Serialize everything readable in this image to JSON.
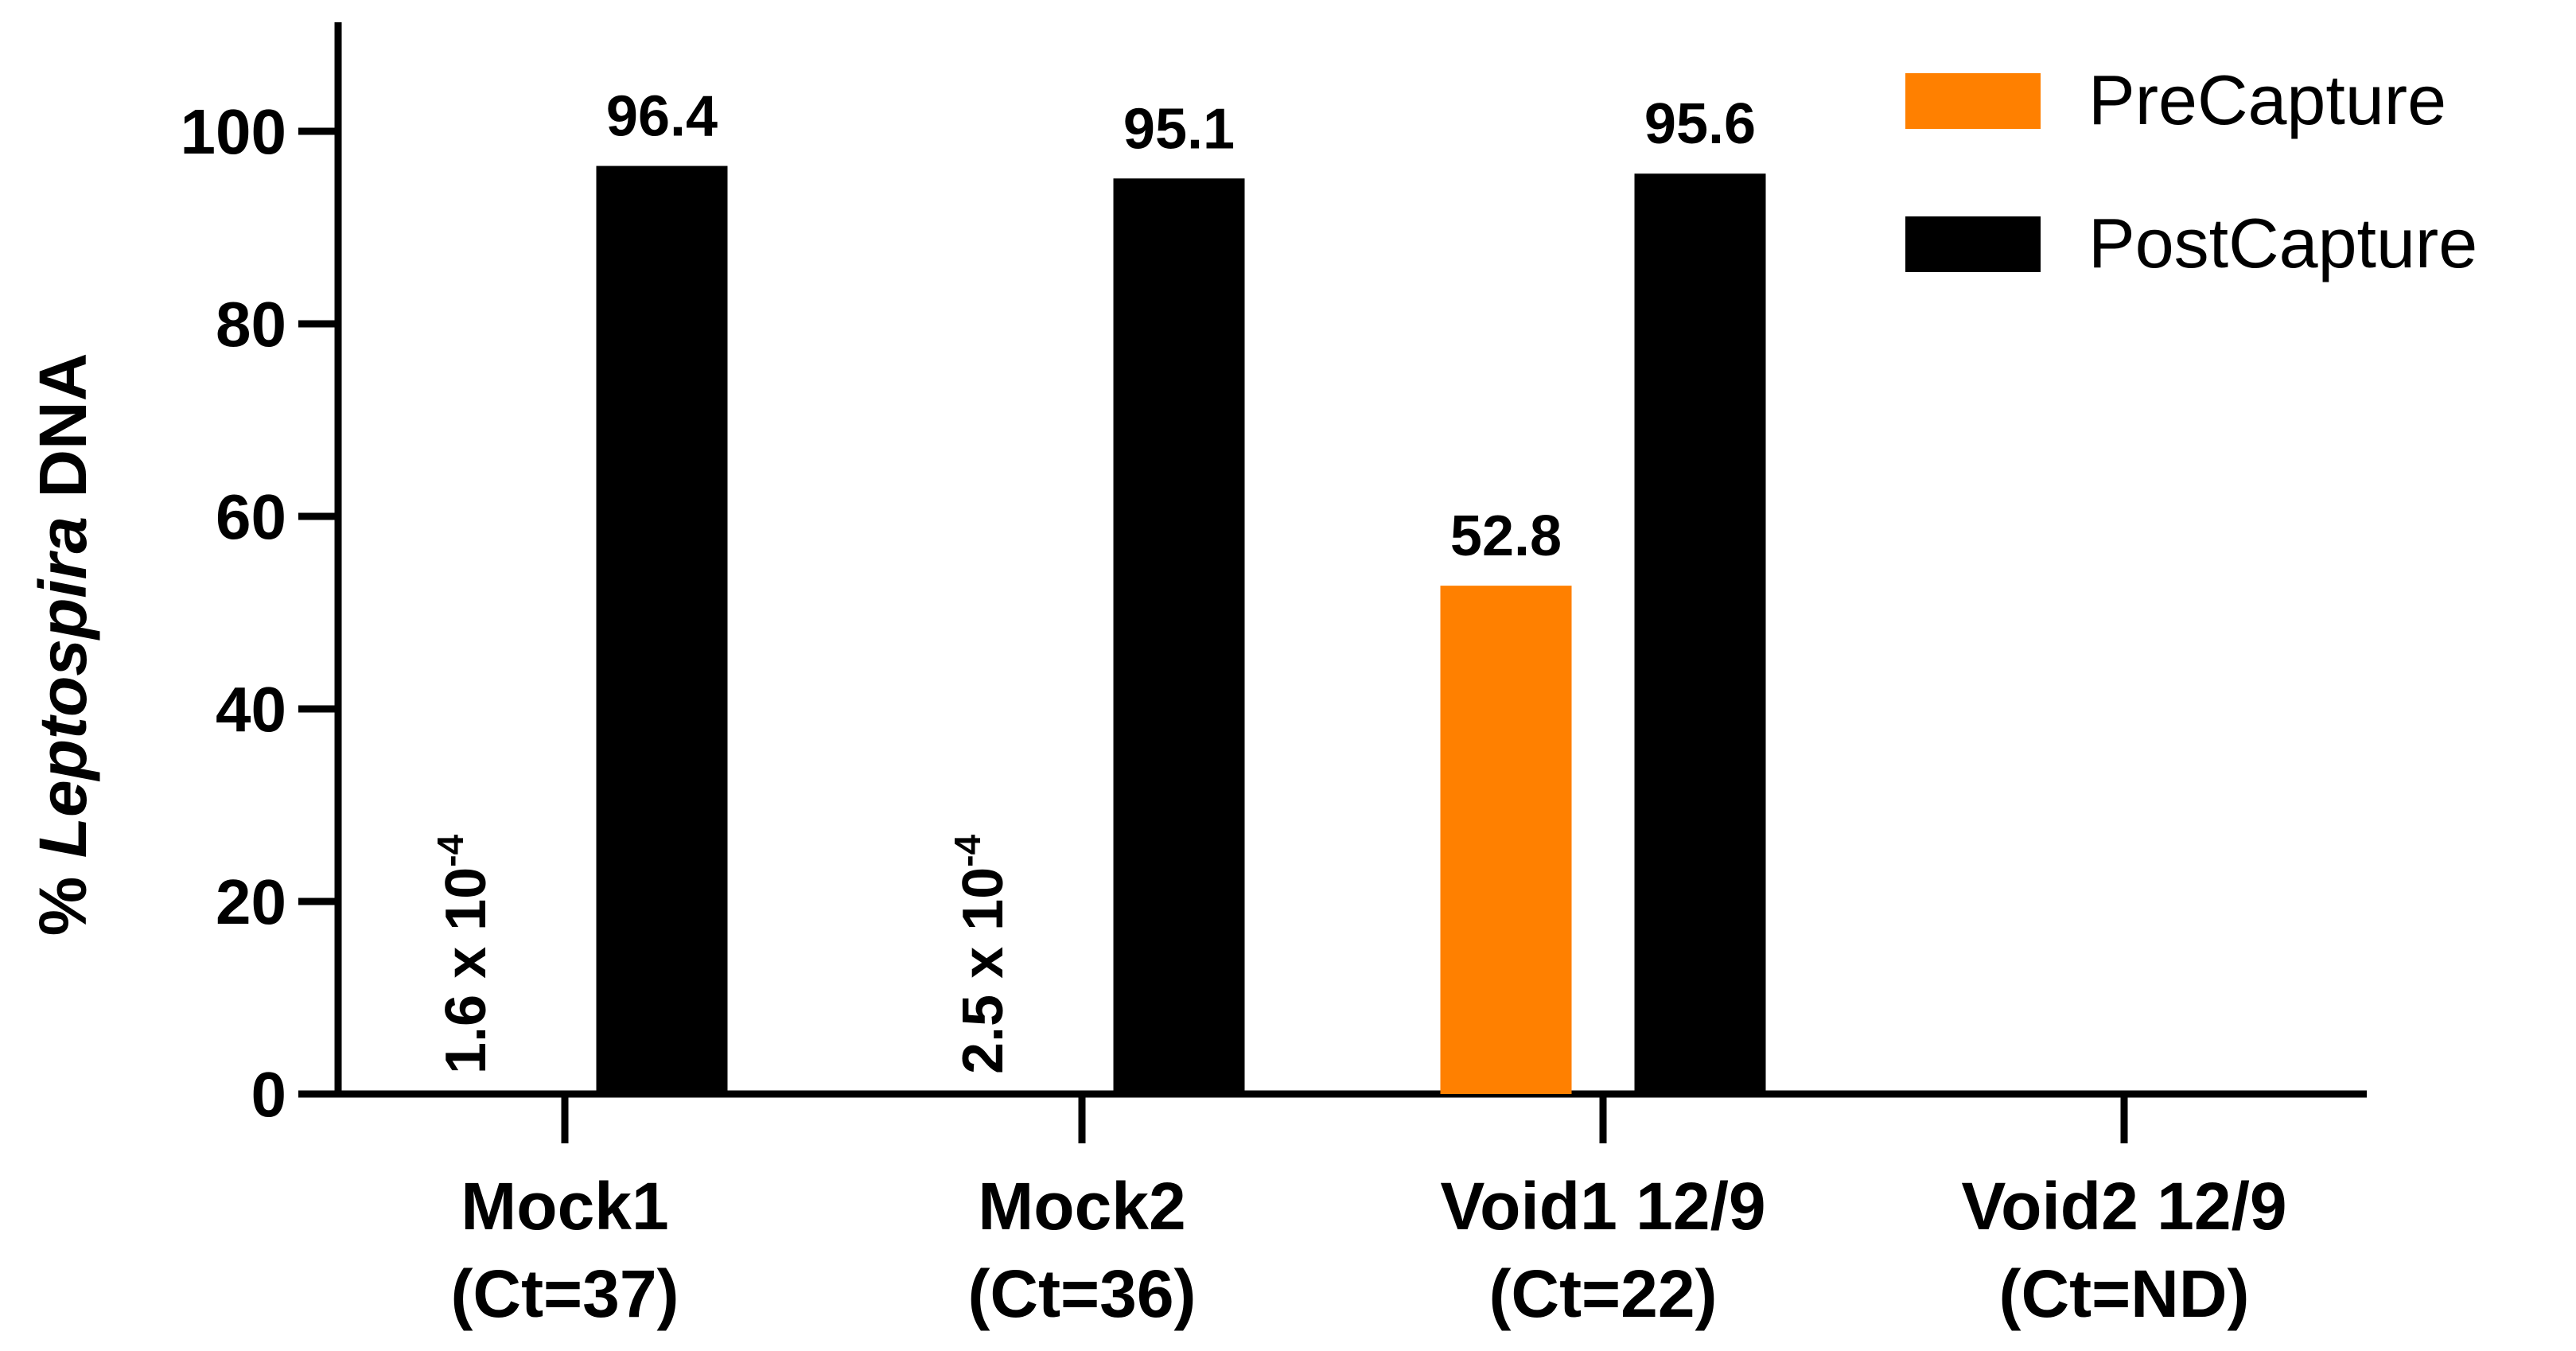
{
  "chart_data": {
    "type": "bar",
    "ylabel_parts": [
      "% ",
      "Leptospira",
      " DNA"
    ],
    "xlabel": "",
    "ylim": [
      0,
      110
    ],
    "yticks": [
      0,
      20,
      40,
      60,
      80,
      100
    ],
    "categories": [
      [
        "Mock1",
        "(Ct=37)"
      ],
      [
        "Mock2",
        "(Ct=36)"
      ],
      [
        "Void1 12/9",
        "(Ct=22)"
      ],
      [
        "Void2 12/9",
        "(Ct=ND)"
      ]
    ],
    "series": [
      {
        "name": "PreCapture",
        "color": "#ff8000",
        "values": [
          0.00016,
          0.00025,
          52.8,
          null
        ],
        "labels": [
          "1.6 x 10^-4",
          "2.5 x 10^-4",
          "52.8",
          ""
        ]
      },
      {
        "name": "PostCapture",
        "color": "#000000",
        "values": [
          96.4,
          95.1,
          95.6,
          null
        ],
        "labels": [
          "96.4",
          "95.1",
          "95.6",
          ""
        ]
      }
    ],
    "legend_position": "top-right",
    "grid": false
  }
}
